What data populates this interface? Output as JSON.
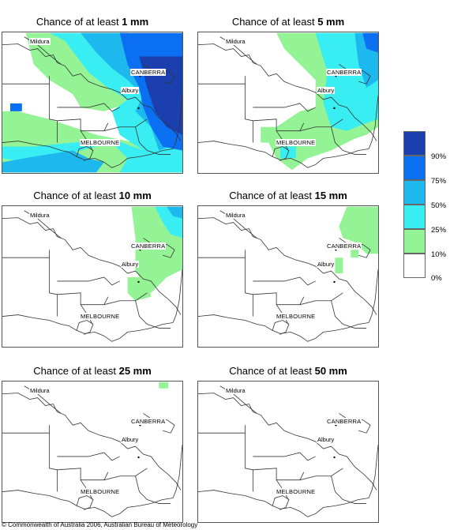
{
  "panels": [
    {
      "prefix": "Chance of at least ",
      "amount": "1 mm"
    },
    {
      "prefix": "Chance of at least ",
      "amount": "5 mm"
    },
    {
      "prefix": "Chance of at least ",
      "amount": "10 mm"
    },
    {
      "prefix": "Chance of at least ",
      "amount": "15 mm"
    },
    {
      "prefix": "Chance of at least ",
      "amount": "25 mm"
    },
    {
      "prefix": "Chance of at least ",
      "amount": "50 mm"
    }
  ],
  "places": {
    "mildura": "Mildura",
    "canberra": "CANBERRA",
    "albury": "Albury",
    "melbourne": "MELBOURNE"
  },
  "legend": {
    "items": [
      {
        "label": "90%",
        "color": "#1b3fae"
      },
      {
        "label": "75%",
        "color": "#0b6ff2"
      },
      {
        "label": "50%",
        "color": "#1db8ee"
      },
      {
        "label": "25%",
        "color": "#38eef2"
      },
      {
        "label": "10%",
        "color": "#94f394"
      },
      {
        "label": "0%",
        "color": "#ffffff"
      }
    ]
  },
  "copyright": "© Commonwealth of Australia 2006, Australian Bureau of Meteorology"
}
